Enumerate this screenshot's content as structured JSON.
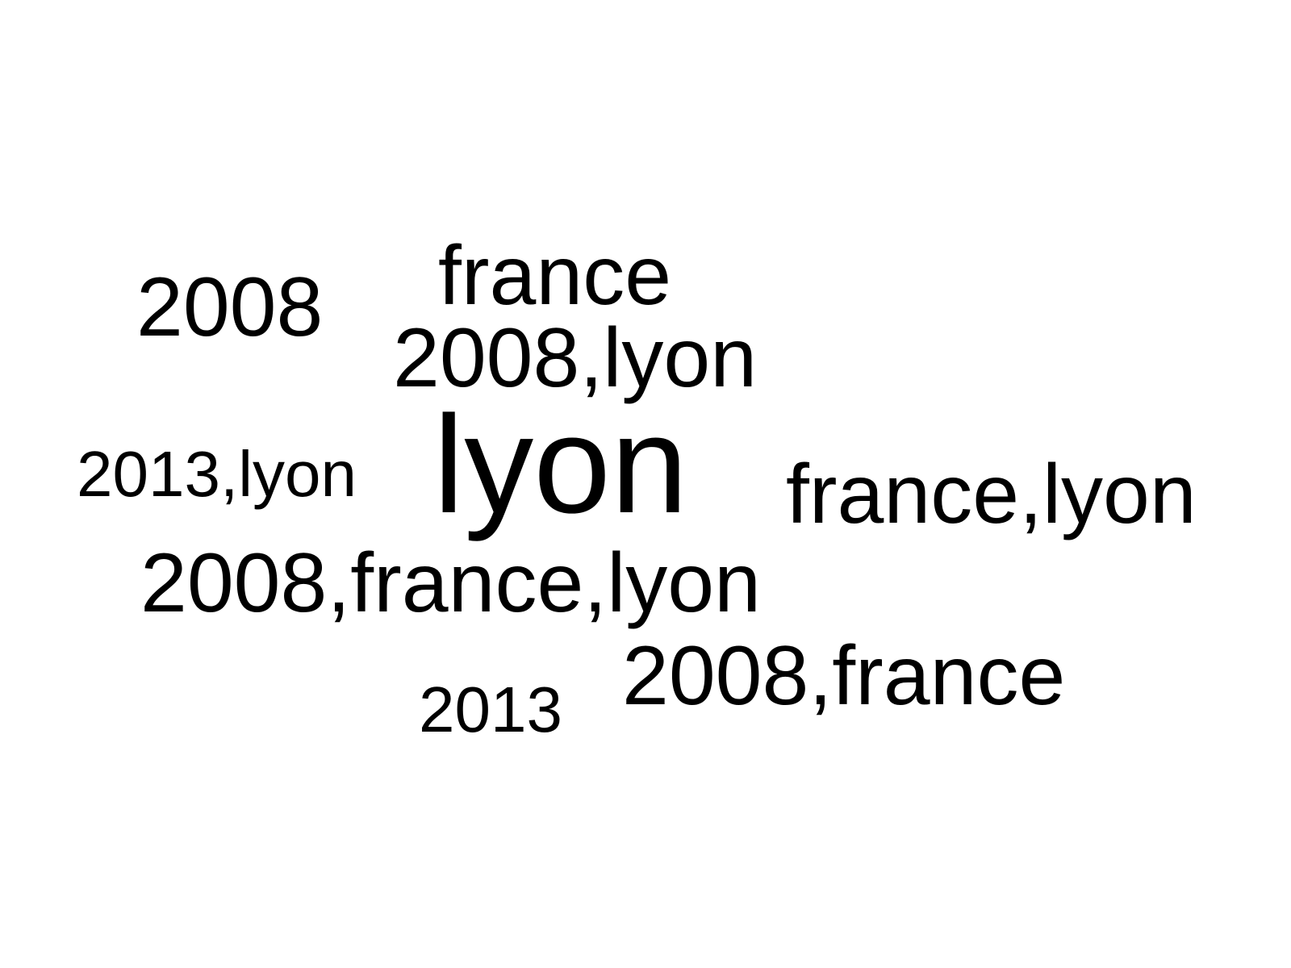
{
  "word_cloud": {
    "colors": {
      "background": "#ffffff",
      "text": "#000000"
    },
    "words": [
      {
        "text": "lyon"
      },
      {
        "text": "2008,france,lyon"
      },
      {
        "text": "france,lyon"
      },
      {
        "text": "2008,france"
      },
      {
        "text": "2008,lyon"
      },
      {
        "text": "france"
      },
      {
        "text": "2008"
      },
      {
        "text": "2013,lyon"
      },
      {
        "text": "2013"
      }
    ]
  }
}
